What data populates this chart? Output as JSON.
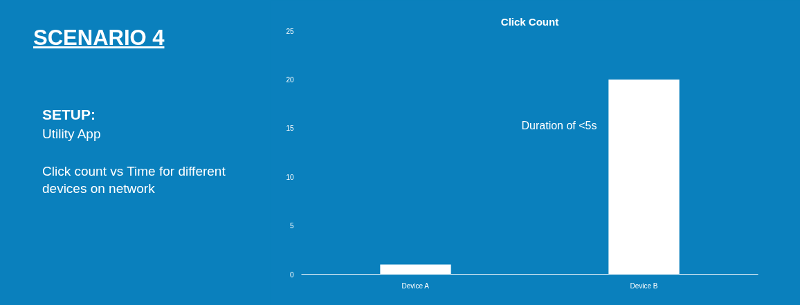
{
  "chart_data": {
    "type": "bar",
    "title": "Click Count",
    "categories": [
      "Device A",
      "Device B"
    ],
    "values": [
      1,
      20
    ],
    "color": "#ffffff",
    "ylim": [
      0,
      25
    ],
    "yticks": [
      0,
      5,
      10,
      15,
      20,
      25
    ],
    "annotations": [
      "SCENARIO 4",
      "SETUP:",
      "Utility App",
      "Click count vs Time for different devices on network",
      "Duration of <5s"
    ]
  }
}
